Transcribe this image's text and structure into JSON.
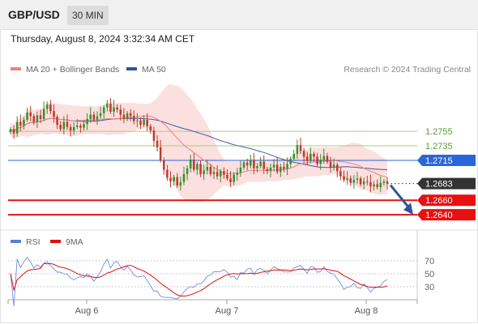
{
  "header": {
    "pair": "GBP/USD",
    "timeframe": "30 MIN"
  },
  "timestamp": "Thursday, August 8, 2024 3:32:34 AM CET",
  "legend": {
    "ma20": {
      "label": "MA 20 + Bollinger Bands",
      "color": "#f08080"
    },
    "ma50": {
      "label": "MA 50",
      "color": "#2f5597"
    },
    "credit": "Research © 2024 Trading Central"
  },
  "rsi_legend": {
    "rsi": {
      "label": "RSI",
      "color": "#5b7fd6"
    },
    "ma9": {
      "label": "9MA",
      "color": "#dd1111"
    }
  },
  "chart_data": [
    {
      "type": "candlestick",
      "x_labels": [
        "Aug 6",
        "Aug 7",
        "Aug 8"
      ],
      "price_levels": [
        {
          "value": 1.2755,
          "label": "1.2755",
          "color": "#a6d17a",
          "style": "solid",
          "badge": false
        },
        {
          "value": 1.2735,
          "label": "1.2735",
          "color": "#a6d17a",
          "style": "solid",
          "badge": false
        },
        {
          "value": 1.2715,
          "label": "1.2715",
          "color": "#2a66d9",
          "style": "solid",
          "badge": true
        },
        {
          "value": 1.2683,
          "label": "1.2683",
          "color": "#333333",
          "style": "dotted",
          "badge": true
        },
        {
          "value": 1.266,
          "label": "1.2660",
          "color": "#e81010",
          "style": "solid",
          "badge": true
        },
        {
          "value": 1.264,
          "label": "1.2640",
          "color": "#e81010",
          "style": "solid",
          "badge": true
        }
      ],
      "current_price": 1.2683,
      "forecast": "down",
      "colors": {
        "up": "#3a8f2e",
        "down": "#c0392b",
        "band_fill": "#fbd9d9",
        "ma20": "#f08080",
        "ma50": "#3b5ca8"
      },
      "candle_closes": [
        1.2758,
        1.2752,
        1.2768,
        1.2763,
        1.2771,
        1.2781,
        1.2776,
        1.2768,
        1.2777,
        1.2772,
        1.2786,
        1.2792,
        1.2783,
        1.2775,
        1.2764,
        1.2758,
        1.2768,
        1.2761,
        1.2756,
        1.2761,
        1.2763,
        1.276,
        1.2765,
        1.2772,
        1.2778,
        1.2771,
        1.2776,
        1.278,
        1.2788,
        1.2793,
        1.2782,
        1.2788,
        1.2785,
        1.2778,
        1.2772,
        1.278,
        1.2776,
        1.2769,
        1.277,
        1.2764,
        1.2771,
        1.2762,
        1.2756,
        1.2742,
        1.2733,
        1.2715,
        1.2702,
        1.2691,
        1.2686,
        1.2692,
        1.268,
        1.2685,
        1.2696,
        1.2704,
        1.2716,
        1.2702,
        1.271,
        1.2696,
        1.2701,
        1.2706,
        1.2696,
        1.2699,
        1.2693,
        1.27,
        1.2695,
        1.269,
        1.2685,
        1.2695,
        1.2698,
        1.2705,
        1.2712,
        1.2708,
        1.2715,
        1.2704,
        1.2707,
        1.2713,
        1.2703,
        1.27,
        1.2705,
        1.2709,
        1.2699,
        1.2706,
        1.2703,
        1.271,
        1.2717,
        1.2724,
        1.2736,
        1.2728,
        1.272,
        1.2714,
        1.2724,
        1.272,
        1.271,
        1.2716,
        1.2721,
        1.2713,
        1.2705,
        1.2709,
        1.27,
        1.2693,
        1.2688,
        1.269,
        1.2684,
        1.2688,
        1.269,
        1.2682,
        1.2686,
        1.2685,
        1.2679,
        1.2682,
        1.2678,
        1.2684,
        1.2686,
        1.2683
      ],
      "y_range": [
        1.262,
        1.283
      ]
    },
    {
      "type": "line",
      "name": "RSI",
      "y_ticks": [
        70,
        50,
        30
      ],
      "y_range": [
        10,
        90
      ]
    }
  ]
}
